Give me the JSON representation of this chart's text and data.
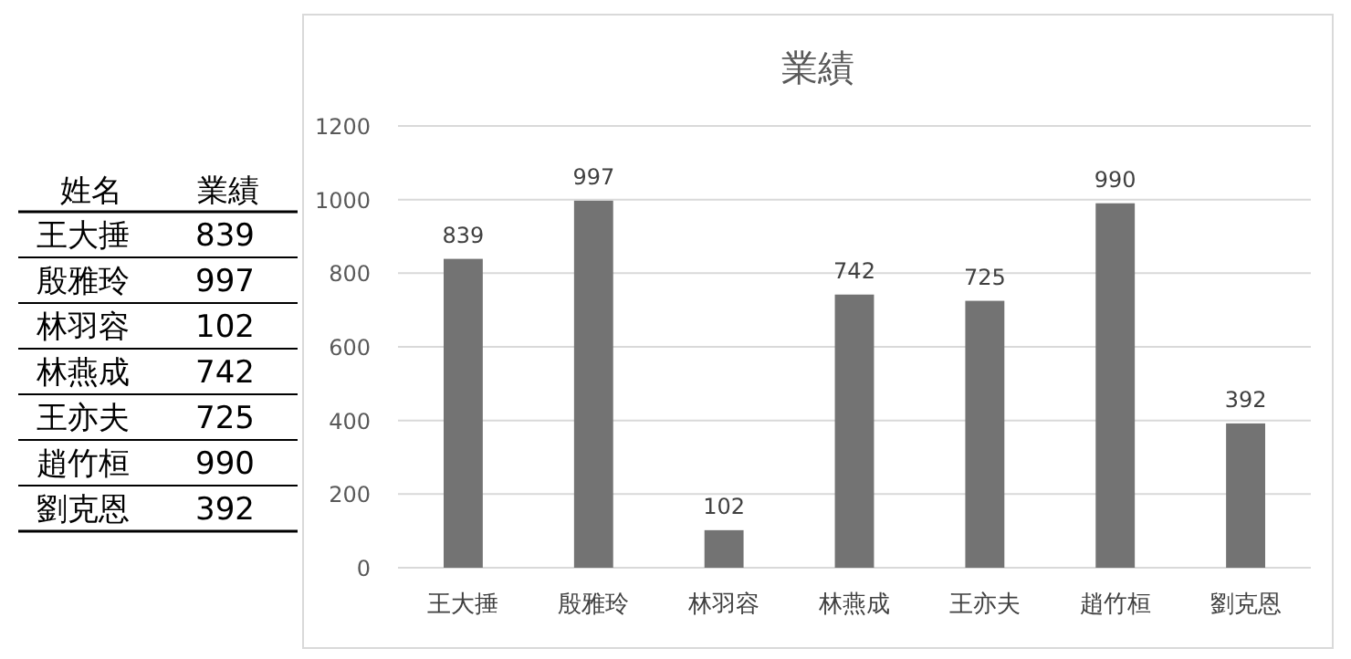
{
  "chart_data": [
    {
      "type": "other",
      "annotations": [
        "姓名",
        "業績",
        "王大捶",
        "839",
        "殷雅玲",
        "997",
        "林羽容",
        "102",
        "林燕成",
        "742",
        "王亦夫",
        "725",
        "趙竹桓",
        "990",
        "劉克恩",
        "392"
      ]
    },
    {
      "type": "bar",
      "title": "業績",
      "categories": [
        "王大捶",
        "殷雅玲",
        "林羽容",
        "林燕成",
        "王亦夫",
        "趙竹桓",
        "劉克恩"
      ],
      "values": [
        839,
        997,
        102,
        742,
        725,
        990,
        392
      ],
      "color": "#737373",
      "ylim": [
        0,
        1200
      ],
      "yticks": [
        0,
        200,
        400,
        600,
        800,
        1000,
        1200
      ],
      "grid": "y",
      "data_labels": true
    }
  ]
}
